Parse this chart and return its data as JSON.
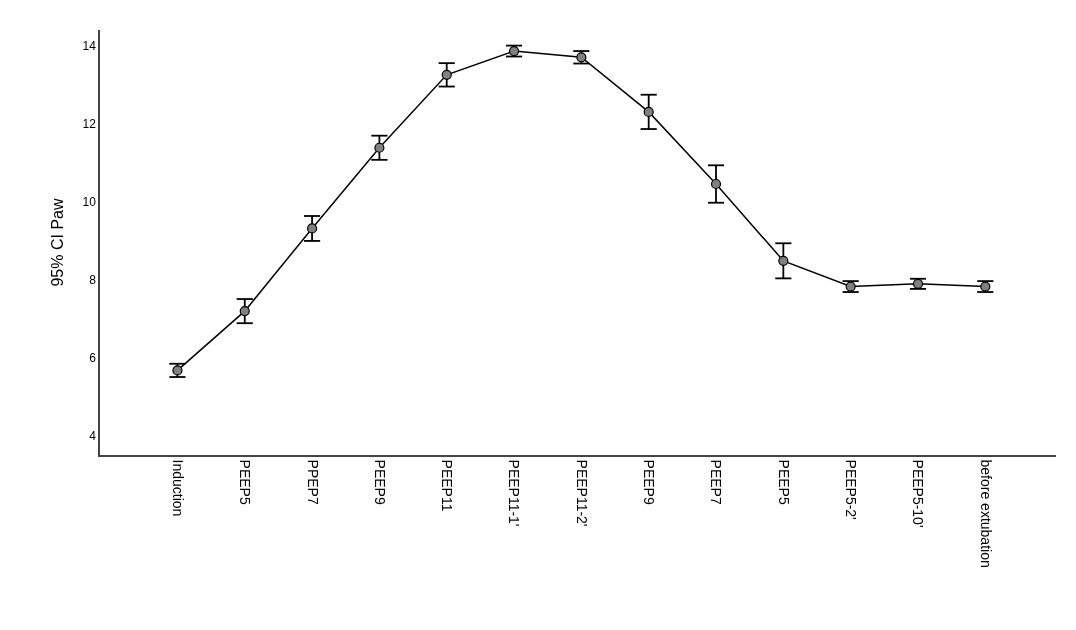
{
  "chart_data": {
    "type": "line",
    "ylabel": "95% CI Paw",
    "categories": [
      "Induction",
      "PEEP5",
      "PPEP7",
      "PEEP9",
      "PEEP11",
      "PEEP11-1'",
      "PEEP11-2'",
      "PEEP9",
      "PEEP7",
      "PEEP5",
      "PEEP5-2'",
      "PEEP5-10'",
      "before extubation"
    ],
    "series": [
      {
        "color": "#000000",
        "values": [
          5.67,
          7.19,
          9.31,
          11.38,
          13.25,
          13.86,
          13.7,
          12.3,
          10.45,
          8.48,
          7.82,
          7.89,
          7.82
        ],
        "errors": [
          0.17,
          0.31,
          0.32,
          0.31,
          0.3,
          0.14,
          0.16,
          0.44,
          0.48,
          0.45,
          0.14,
          0.13,
          0.14
        ]
      }
    ],
    "ylim": [
      3.5,
      14.4
    ],
    "yticks": [
      4,
      6,
      8,
      10,
      12,
      14
    ],
    "legend": false,
    "marker": "circle",
    "line_style": "solid"
  }
}
